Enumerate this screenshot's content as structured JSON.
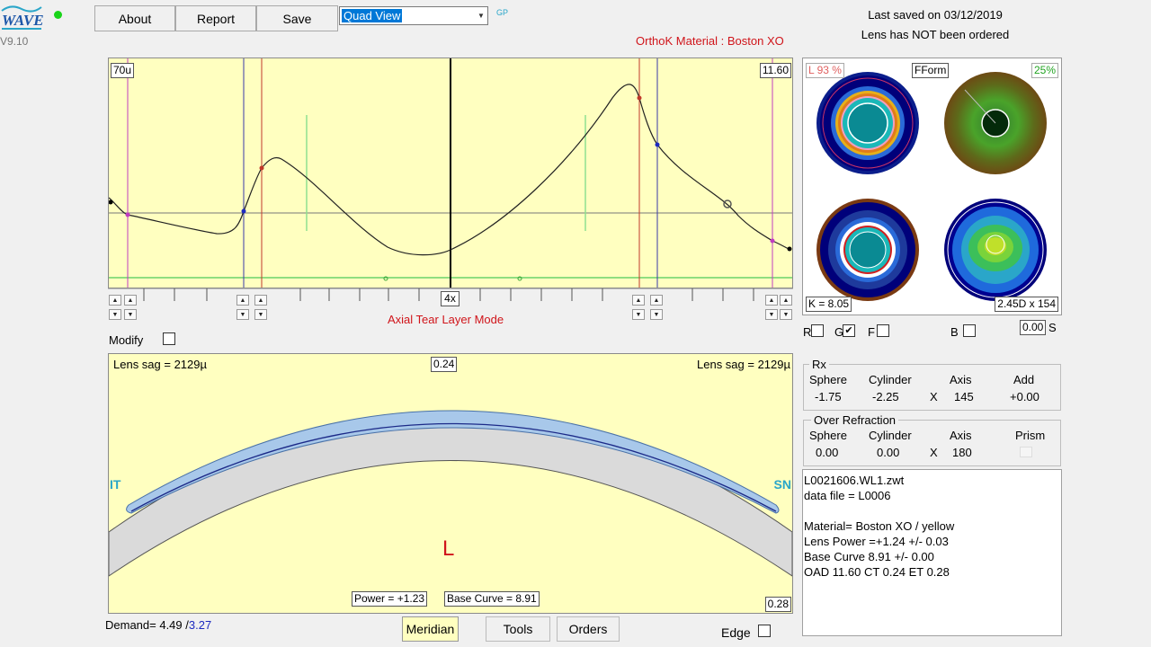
{
  "app": {
    "logo_text": "WAVE",
    "version": "V9.10"
  },
  "toolbar": {
    "about_label": "About",
    "report_label": "Report",
    "save_label": "Save",
    "view_selected": "Quad View",
    "gp_label": "GP"
  },
  "status": {
    "last_saved": "Last saved on 03/12/2019",
    "order_status": "Lens has NOT been ordered",
    "material_label": "OrthoK Material : Boston XO"
  },
  "tear_chart": {
    "left_value": "70u",
    "right_value": "11.60",
    "zoom_label": "4x",
    "mode_label": "Axial Tear Layer Mode"
  },
  "modify": {
    "label": "Modify"
  },
  "maps": {
    "left_pct": "L 93 %",
    "form_label": "FForm",
    "right_pct": "25%",
    "k_label": "K = 8.05",
    "cyl_label": "2.45D x 154",
    "check_r": "R",
    "check_g": "G",
    "check_f": "F",
    "check_b": "B",
    "s_value": "0.00",
    "s_label": "S",
    "colors": {
      "dark_blue": "#00007a",
      "teal": "#0a8a93",
      "orange": "#e69020",
      "green": "#24a524"
    }
  },
  "profile": {
    "left_sag": "Lens sag = 2129µ",
    "right_sag": "Lens sag = 2129µ",
    "center_thickness": "0.24",
    "edge_thickness": "0.28",
    "left_side": "IT",
    "right_side": "SN",
    "eye": "L",
    "power": "Power = +1.23",
    "base_curve": "Base Curve = 8.91"
  },
  "rx": {
    "title": "Rx",
    "headers": [
      "Sphere",
      "Cylinder",
      "Axis",
      "Add"
    ],
    "sphere": "-1.75",
    "cylinder": "-2.25",
    "x": "X",
    "axis": "145",
    "add": "+0.00"
  },
  "over_refraction": {
    "title": "Over Refraction",
    "headers": [
      "Sphere",
      "Cylinder",
      "Axis",
      "Prism"
    ],
    "sphere": "0.00",
    "cylinder": "0.00",
    "x": "X",
    "axis": "180"
  },
  "info": {
    "lines": [
      "L0021606.WL1.zwt",
      "data file = L0006",
      "",
      "Material= Boston XO / yellow",
      "Lens Power =+1.24 +/- 0.03",
      "Base Curve 8.91 +/- 0.00",
      "OAD 11.60 CT 0.24 ET 0.28"
    ]
  },
  "bottom": {
    "demand_label": "Demand= 4.49 /",
    "demand_value2": "3.27",
    "meridian_label": "Meridian",
    "tools_label": "Tools",
    "orders_label": "Orders",
    "edge_label": "Edge"
  }
}
